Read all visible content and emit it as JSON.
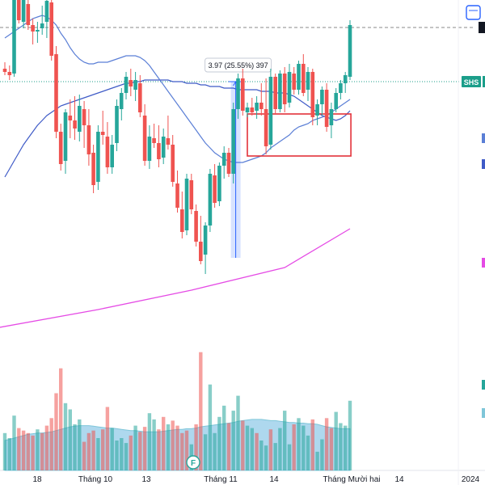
{
  "symbol": "SHS",
  "measure_label": "3.97 (25.55%) 397",
  "colors": {
    "up": "#26a69a",
    "down": "#ef5350",
    "ma_fast": "#5b7fd6",
    "ma_slow": "#3f5bc7",
    "ma_long": "#e54be5",
    "price_tag": "#1b9e8a",
    "measure": "#2962ff",
    "box": "#e3323a",
    "vol_ma_fill": "#93cbe8"
  },
  "chart_data": {
    "type": "candlestick",
    "x_ticks": [
      "18",
      "Tháng 10",
      "13",
      "Tháng 11",
      "14",
      "Tháng Mười hai",
      "14",
      "2024"
    ],
    "candles": [
      [
        14.5,
        14.9,
        14.1,
        14.3
      ],
      [
        14.3,
        14.7,
        13.8,
        14.1
      ],
      [
        14.2,
        19.6,
        14.0,
        19.2
      ],
      [
        19.2,
        19.6,
        17.3,
        17.5
      ],
      [
        17.4,
        19.4,
        17.0,
        18.8
      ],
      [
        18.5,
        18.9,
        16.9,
        17.2
      ],
      [
        17.2,
        17.6,
        16.0,
        16.8
      ],
      [
        16.8,
        17.4,
        16.1,
        16.9
      ],
      [
        17.0,
        18.4,
        16.6,
        17.3
      ],
      [
        17.4,
        19.4,
        16.4,
        18.7
      ],
      [
        18.6,
        19.2,
        15.0,
        15.3
      ],
      [
        15.4,
        15.9,
        10.2,
        10.6
      ],
      [
        10.6,
        11.1,
        8.2,
        8.6
      ],
      [
        8.8,
        12.0,
        8.0,
        11.8
      ],
      [
        11.6,
        12.6,
        10.2,
        11.3
      ],
      [
        11.3,
        12.8,
        10.1,
        10.8
      ],
      [
        10.6,
        12.9,
        10.0,
        12.2
      ],
      [
        12.0,
        12.5,
        9.6,
        11.0
      ],
      [
        11.0,
        12.0,
        8.5,
        9.2
      ],
      [
        9.3,
        9.8,
        6.8,
        7.3
      ],
      [
        7.5,
        11.0,
        7.0,
        10.6
      ],
      [
        10.6,
        11.9,
        9.8,
        10.4
      ],
      [
        10.3,
        11.2,
        8.0,
        8.4
      ],
      [
        8.4,
        10.4,
        8.0,
        9.8
      ],
      [
        9.9,
        12.6,
        9.4,
        12.2
      ],
      [
        12.0,
        13.3,
        11.3,
        13.0
      ],
      [
        13.0,
        14.3,
        12.6,
        14.0
      ],
      [
        13.8,
        14.5,
        12.8,
        13.4
      ],
      [
        13.2,
        14.3,
        12.5,
        13.8
      ],
      [
        13.6,
        14.1,
        11.5,
        11.8
      ],
      [
        11.6,
        12.3,
        8.5,
        8.8
      ],
      [
        8.8,
        11.0,
        8.3,
        10.3
      ],
      [
        10.2,
        11.1,
        9.6,
        9.9
      ],
      [
        9.9,
        11.0,
        8.4,
        8.9
      ],
      [
        9.0,
        10.8,
        8.6,
        10.3
      ],
      [
        10.2,
        11.6,
        9.5,
        9.8
      ],
      [
        9.8,
        10.4,
        7.2,
        7.5
      ],
      [
        7.4,
        8.2,
        5.6,
        5.9
      ],
      [
        5.8,
        6.9,
        4.0,
        4.4
      ],
      [
        4.5,
        8.0,
        4.2,
        7.7
      ],
      [
        7.6,
        8.0,
        5.5,
        5.8
      ],
      [
        5.7,
        6.1,
        3.5,
        3.8
      ],
      [
        3.8,
        5.4,
        2.4,
        2.6
      ],
      [
        3.0,
        5.0,
        1.8,
        4.8
      ],
      [
        4.8,
        8.3,
        4.4,
        8.0
      ],
      [
        7.9,
        8.6,
        5.9,
        6.2
      ],
      [
        6.3,
        8.7,
        6.0,
        8.5
      ],
      [
        8.5,
        9.7,
        7.7,
        9.3
      ],
      [
        9.3,
        9.6,
        7.8,
        8.0
      ],
      [
        8.0,
        12.4,
        7.4,
        12.0
      ],
      [
        12.0,
        14.2,
        11.4,
        13.9
      ],
      [
        13.9,
        14.5,
        11.6,
        11.9
      ],
      [
        11.8,
        12.4,
        11.5,
        12.1
      ],
      [
        12.1,
        12.7,
        11.6,
        11.8
      ],
      [
        11.9,
        12.8,
        11.4,
        12.4
      ],
      [
        12.4,
        13.6,
        11.6,
        12.0
      ],
      [
        12.0,
        13.9,
        9.2,
        9.7
      ],
      [
        9.8,
        14.5,
        9.5,
        14.0
      ],
      [
        14.0,
        14.2,
        11.7,
        12.0
      ],
      [
        12.0,
        14.4,
        11.8,
        14.2
      ],
      [
        14.2,
        14.6,
        11.8,
        12.3
      ],
      [
        12.4,
        14.8,
        12.1,
        14.3
      ],
      [
        14.2,
        14.6,
        12.9,
        13.2
      ],
      [
        13.2,
        15.0,
        12.9,
        14.8
      ],
      [
        14.8,
        15.4,
        12.8,
        13.0
      ],
      [
        13.2,
        14.6,
        12.5,
        14.3
      ],
      [
        14.3,
        14.5,
        11.0,
        11.5
      ],
      [
        11.6,
        12.6,
        11.0,
        12.3
      ],
      [
        12.3,
        13.4,
        11.6,
        13.2
      ],
      [
        13.2,
        13.6,
        10.6,
        10.9
      ],
      [
        11.0,
        12.4,
        10.2,
        12.0
      ],
      [
        12.0,
        13.3,
        11.8,
        13.0
      ],
      [
        13.0,
        13.8,
        12.6,
        13.6
      ],
      [
        13.6,
        14.3,
        13.0,
        14.1
      ],
      [
        14.0,
        17.5,
        13.8,
        17.2
      ]
    ],
    "ma_fast": [
      16.4,
      16.6,
      16.8,
      17.0,
      17.2,
      17.4,
      17.6,
      17.7,
      17.8,
      17.7,
      17.5,
      17.2,
      16.7,
      16.3,
      15.8,
      15.4,
      15.1,
      14.9,
      14.8,
      14.8,
      14.9,
      14.9,
      14.9,
      15.0,
      15.1,
      15.2,
      15.3,
      15.3,
      15.3,
      15.2,
      15.0,
      14.7,
      14.3,
      13.9,
      13.5,
      13.1,
      12.7,
      12.3,
      11.9,
      11.5,
      11.1,
      10.7,
      10.3,
      9.9,
      9.6,
      9.3,
      9.1,
      8.9,
      8.8,
      8.7,
      8.7,
      8.7,
      8.8,
      8.9,
      9.0,
      9.1,
      9.3,
      9.6,
      9.8,
      10.0,
      10.2,
      10.4,
      10.7,
      10.9,
      11.0,
      11.1,
      11.3,
      11.4,
      11.5,
      11.6,
      11.8,
      12.0,
      12.2,
      12.4,
      12.6
    ],
    "ma_slow": [
      7.8,
      8.3,
      8.8,
      9.3,
      9.8,
      10.2,
      10.6,
      11.0,
      11.3,
      11.6,
      11.8,
      12.0,
      12.2,
      12.3,
      12.4,
      12.5,
      12.6,
      12.7,
      12.8,
      12.9,
      13.0,
      13.1,
      13.2,
      13.3,
      13.4,
      13.5,
      13.6,
      13.6,
      13.7,
      13.7,
      13.8,
      13.8,
      13.8,
      13.8,
      13.8,
      13.8,
      13.7,
      13.7,
      13.7,
      13.6,
      13.6,
      13.6,
      13.5,
      13.5,
      13.4,
      13.4,
      13.4,
      13.3,
      13.3,
      13.3,
      13.2,
      13.2,
      13.2,
      13.2,
      13.2,
      13.1,
      13.1,
      13.1,
      13.0,
      13.0,
      13.0,
      12.9,
      12.8,
      12.6,
      12.4,
      12.2,
      12.0,
      11.8,
      11.6,
      11.5,
      11.4,
      11.3,
      11.4,
      11.6,
      11.9
    ],
    "ma_long_points": [
      [
        -3,
        -1.6
      ],
      [
        20,
        -0.4
      ],
      [
        40,
        0.8
      ],
      [
        60,
        2.2
      ],
      [
        74,
        4.6
      ]
    ],
    "volumes": [
      [
        3.0,
        1
      ],
      [
        2.6,
        1
      ],
      [
        4.4,
        1
      ],
      [
        3.4,
        0
      ],
      [
        3.2,
        0
      ],
      [
        3.0,
        0
      ],
      [
        2.8,
        0
      ],
      [
        3.3,
        1
      ],
      [
        3.0,
        0
      ],
      [
        3.6,
        0
      ],
      [
        4.2,
        0
      ],
      [
        6.2,
        0
      ],
      [
        8.2,
        0
      ],
      [
        5.4,
        1
      ],
      [
        4.9,
        1
      ],
      [
        3.7,
        1
      ],
      [
        4.1,
        1
      ],
      [
        2.3,
        0
      ],
      [
        3.0,
        0
      ],
      [
        3.2,
        0
      ],
      [
        2.6,
        1
      ],
      [
        3.3,
        0
      ],
      [
        5.1,
        0
      ],
      [
        3.4,
        1
      ],
      [
        2.4,
        1
      ],
      [
        2.6,
        1
      ],
      [
        2.2,
        1
      ],
      [
        2.8,
        0
      ],
      [
        3.6,
        1
      ],
      [
        3.1,
        0
      ],
      [
        3.5,
        0
      ],
      [
        4.6,
        1
      ],
      [
        4.1,
        1
      ],
      [
        3.3,
        0
      ],
      [
        4.3,
        0
      ],
      [
        3.7,
        1
      ],
      [
        4.0,
        0
      ],
      [
        3.6,
        0
      ],
      [
        3.0,
        0
      ],
      [
        3.2,
        0
      ],
      [
        2.1,
        1
      ],
      [
        3.7,
        0
      ],
      [
        9.5,
        0
      ],
      [
        2.9,
        1
      ],
      [
        6.9,
        1
      ],
      [
        3.0,
        1
      ],
      [
        4.3,
        1
      ],
      [
        5.2,
        1
      ],
      [
        3.8,
        0
      ],
      [
        4.8,
        1
      ],
      [
        6.0,
        1
      ],
      [
        4.0,
        0
      ],
      [
        3.6,
        1
      ],
      [
        3.4,
        1
      ],
      [
        3.0,
        0
      ],
      [
        2.4,
        1
      ],
      [
        2.0,
        1
      ],
      [
        3.3,
        0
      ],
      [
        2.2,
        1
      ],
      [
        3.4,
        1
      ],
      [
        4.8,
        1
      ],
      [
        2.1,
        1
      ],
      [
        3.7,
        0
      ],
      [
        4.2,
        1
      ],
      [
        3.6,
        1
      ],
      [
        2.8,
        1
      ],
      [
        4.1,
        0
      ],
      [
        1.5,
        1
      ],
      [
        2.5,
        1
      ],
      [
        4.2,
        0
      ],
      [
        3.4,
        0
      ],
      [
        4.7,
        1
      ],
      [
        3.8,
        1
      ],
      [
        3.6,
        1
      ],
      [
        5.6,
        1
      ]
    ],
    "vol_ma": [
      2.4,
      2.5,
      2.6,
      2.7,
      2.8,
      2.9,
      2.95,
      3.0,
      3.0,
      3.05,
      3.1,
      3.2,
      3.3,
      3.4,
      3.5,
      3.55,
      3.6,
      3.6,
      3.6,
      3.55,
      3.5,
      3.45,
      3.4,
      3.4,
      3.35,
      3.3,
      3.25,
      3.2,
      3.2,
      3.15,
      3.1,
      3.1,
      3.1,
      3.1,
      3.15,
      3.2,
      3.25,
      3.3,
      3.3,
      3.35,
      3.35,
      3.4,
      3.5,
      3.55,
      3.6,
      3.65,
      3.7,
      3.75,
      3.8,
      3.85,
      3.95,
      4.0,
      4.05,
      4.1,
      4.1,
      4.1,
      4.05,
      4.0,
      4.0,
      3.95,
      3.9,
      3.85,
      3.85,
      3.8,
      3.8,
      3.75,
      3.75,
      3.7,
      3.6,
      3.5,
      3.45,
      3.4,
      3.35,
      3.35,
      3.35
    ]
  }
}
